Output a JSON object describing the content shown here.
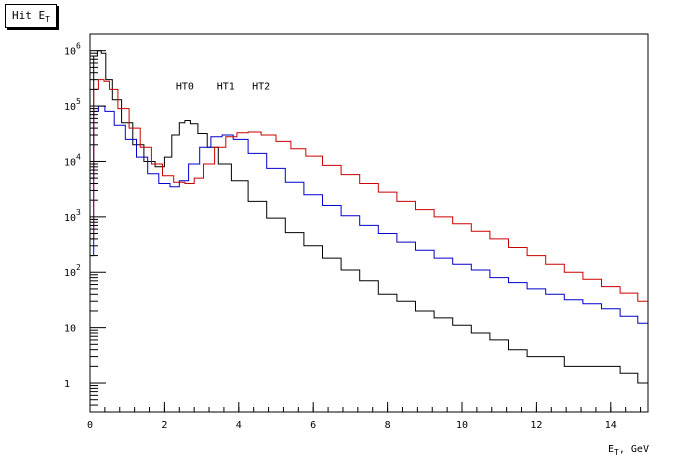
{
  "chart_data": {
    "type": "line",
    "title": "Hit E",
    "title_subscript": "T",
    "xlabel": "E",
    "xlabel_subscript": "T",
    "xlabel_suffix": ", GeV",
    "xlim": [
      0,
      15
    ],
    "ylim": [
      0.3,
      2000000
    ],
    "yscale": "log",
    "x_ticks": [
      0,
      2,
      4,
      6,
      8,
      10,
      12,
      14
    ],
    "x_tick_labels": [
      "0",
      "2",
      "4",
      "6",
      "8",
      "10",
      "12",
      "14"
    ],
    "y_ticks": [
      1,
      10,
      100,
      1000,
      10000,
      100000,
      1000000
    ],
    "y_tick_labels": [
      {
        "base": "1",
        "exp": ""
      },
      {
        "base": "10",
        "exp": ""
      },
      {
        "base": "10",
        "exp": "2"
      },
      {
        "base": "10",
        "exp": "3"
      },
      {
        "base": "10",
        "exp": "4"
      },
      {
        "base": "10",
        "exp": "5"
      },
      {
        "base": "10",
        "exp": "6"
      }
    ],
    "grid": false,
    "annotations": [
      {
        "text": "HT0",
        "x": 2.55,
        "y": 200000
      },
      {
        "text": "HT1",
        "x": 3.65,
        "y": 200000
      },
      {
        "text": "HT2",
        "x": 4.6,
        "y": 200000
      }
    ],
    "series": [
      {
        "color": "#000000",
        "x": [
          0.05,
          0.15,
          0.25,
          0.35,
          0.5,
          0.7,
          1.0,
          1.3,
          1.6,
          1.9,
          2.1,
          2.3,
          2.5,
          2.6,
          2.8,
          3.0,
          3.3,
          3.6,
          4.0,
          4.5,
          5.0,
          5.5,
          6.0,
          6.5,
          7.0,
          7.5,
          8.0,
          8.5,
          9.0,
          9.5,
          10.0,
          10.5,
          11.0,
          11.5,
          12.0,
          12.5,
          13.0,
          13.5,
          14.0,
          14.5,
          14.95
        ],
        "y": [
          5000,
          800000,
          1000000,
          900000,
          300000,
          130000,
          50000,
          20000,
          10000,
          8000,
          12000,
          30000,
          50000,
          55000,
          48000,
          32000,
          18000,
          9000,
          4500,
          1900,
          950,
          520,
          300,
          180,
          110,
          70,
          40,
          30,
          20,
          15,
          11,
          8,
          6,
          4,
          3,
          3,
          2,
          2,
          2,
          1.5,
          1
        ]
      },
      {
        "color": "#0000cc",
        "x": [
          0.05,
          0.15,
          0.3,
          0.5,
          0.8,
          1.1,
          1.4,
          1.7,
          2.0,
          2.3,
          2.5,
          2.8,
          3.1,
          3.4,
          3.7,
          4.0,
          4.5,
          5.0,
          5.5,
          6.0,
          6.5,
          7.0,
          7.5,
          8.0,
          8.5,
          9.0,
          9.5,
          10.0,
          10.5,
          11.0,
          11.5,
          12.0,
          12.5,
          13.0,
          13.5,
          14.0,
          14.5,
          14.95
        ],
        "y": [
          200,
          80000,
          100000,
          80000,
          45000,
          25000,
          12000,
          6000,
          4000,
          3500,
          4500,
          9000,
          18000,
          28000,
          30000,
          25000,
          14000,
          7500,
          4200,
          2500,
          1600,
          1050,
          700,
          500,
          350,
          250,
          180,
          140,
          110,
          80,
          65,
          50,
          40,
          32,
          27,
          22,
          16,
          12
        ]
      },
      {
        "color": "#cc0000",
        "x": [
          0.05,
          0.15,
          0.3,
          0.45,
          0.6,
          0.9,
          1.2,
          1.5,
          1.8,
          2.1,
          2.4,
          2.7,
          2.9,
          3.2,
          3.5,
          3.8,
          4.1,
          4.4,
          4.8,
          5.2,
          5.6,
          6.0,
          6.5,
          7.0,
          7.5,
          8.0,
          8.5,
          9.0,
          9.5,
          10.0,
          10.5,
          11.0,
          11.5,
          12.0,
          12.5,
          13.0,
          13.5,
          14.0,
          14.5,
          14.95
        ],
        "y": [
          400,
          200000,
          300000,
          280000,
          200000,
          90000,
          40000,
          18000,
          9000,
          5500,
          4200,
          4000,
          5000,
          9000,
          18000,
          28000,
          33000,
          34000,
          30000,
          23000,
          17000,
          12500,
          8500,
          5800,
          4000,
          2800,
          1900,
          1350,
          1000,
          750,
          550,
          400,
          280,
          200,
          140,
          100,
          75,
          55,
          42,
          30
        ]
      }
    ]
  }
}
